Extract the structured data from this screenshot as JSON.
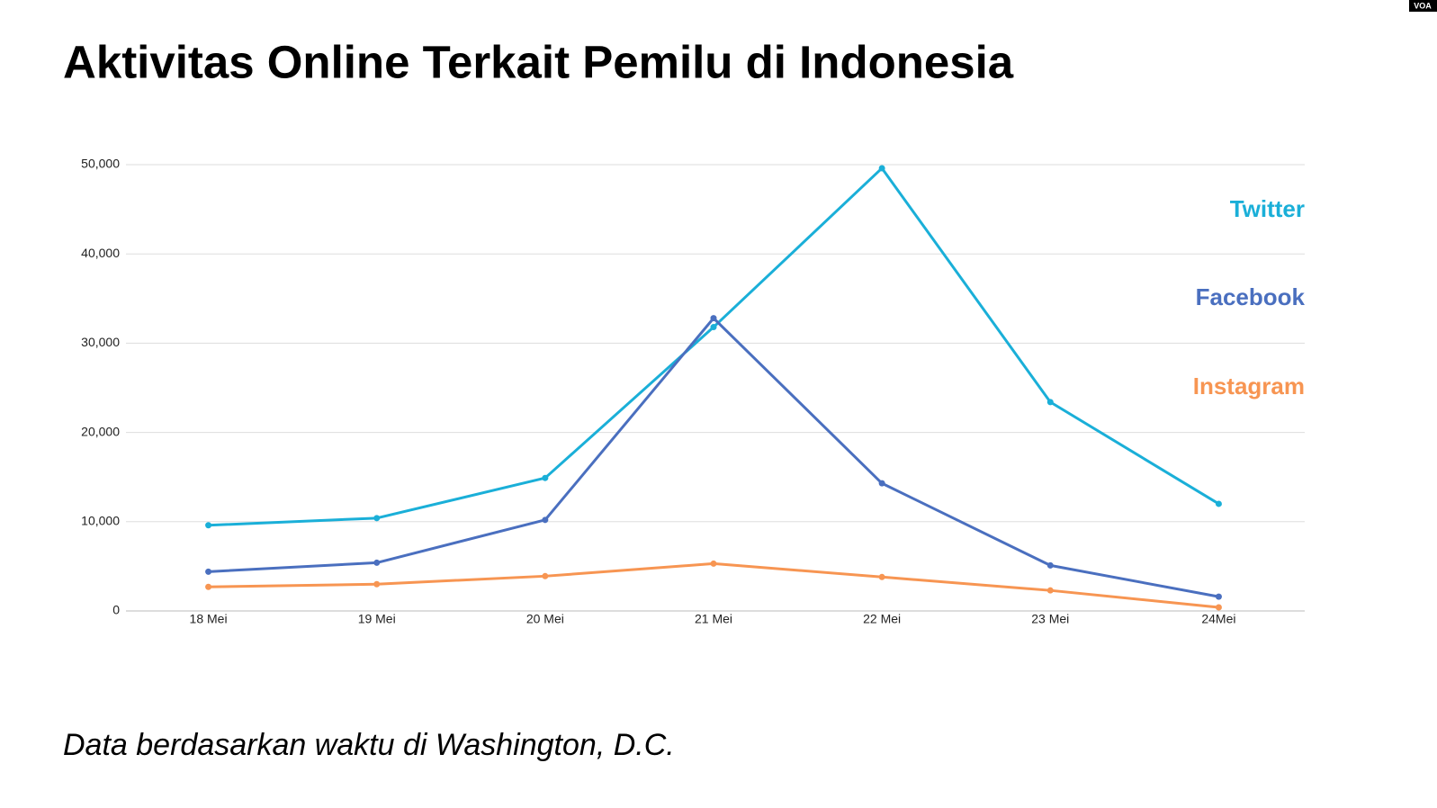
{
  "logo": "VOA",
  "chart_data": {
    "type": "line",
    "title": "Aktivitas Online Terkait Pemilu di Indonesia",
    "note": "Data berdasarkan waktu di Washington, D.C.",
    "categories": [
      "18 Mei",
      "19 Mei",
      "20 Mei",
      "21 Mei",
      "22 Mei",
      "23 Mei",
      "24Mei"
    ],
    "series": [
      {
        "name": "Twitter",
        "color": "#1aafd8",
        "values": [
          9600,
          10400,
          14900,
          31800,
          49600,
          23400,
          12000
        ]
      },
      {
        "name": "Facebook",
        "color": "#4a6fbf",
        "values": [
          4400,
          5400,
          10200,
          32800,
          14300,
          5100,
          1600
        ]
      },
      {
        "name": "Instagram",
        "color": "#f79552",
        "values": [
          2700,
          3000,
          3900,
          5300,
          3800,
          2300,
          400
        ]
      }
    ],
    "ylim": [
      0,
      50000
    ],
    "yticks": [
      0,
      {
        "value": 10000,
        "label": "10,000"
      },
      {
        "value": 20000,
        "label": "20,000"
      },
      {
        "value": 30000,
        "label": "30,000"
      },
      {
        "value": 40000,
        "label": "40,000"
      },
      {
        "value": 50000,
        "label": "50,000"
      }
    ],
    "grid": true
  }
}
